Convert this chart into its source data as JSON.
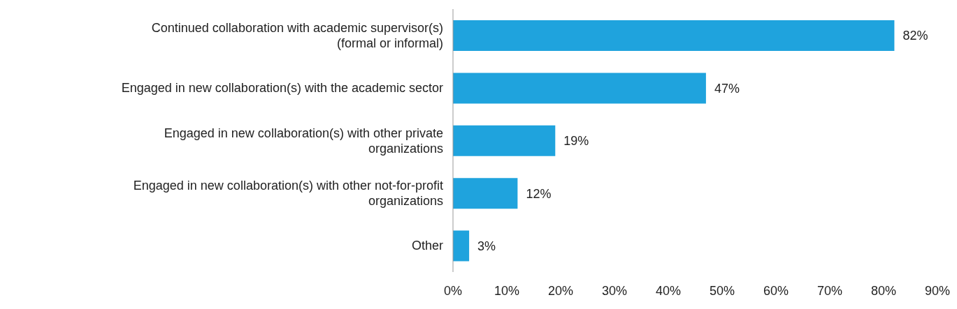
{
  "chart_data": {
    "type": "bar",
    "orientation": "horizontal",
    "categories": [
      "Continued collaboration with academic supervisor(s) (formal or informal)",
      "Engaged in new collaboration(s) with the academic sector",
      "Engaged in new collaboration(s) with other private organizations",
      "Engaged in new collaboration(s) with other not-for-profit organizations",
      "Other"
    ],
    "values": [
      82,
      47,
      19,
      12,
      3
    ],
    "value_labels": [
      "82%",
      "47%",
      "19%",
      "12%",
      "3%"
    ],
    "color": "#1fa3dd",
    "xlim": [
      0,
      90
    ],
    "xticks": [
      {
        "value": 0,
        "label": "0%"
      },
      {
        "value": 10,
        "label": "10%"
      },
      {
        "value": 20,
        "label": "20%"
      },
      {
        "value": 30,
        "label": "30%"
      },
      {
        "value": 40,
        "label": "40%"
      },
      {
        "value": 50,
        "label": "50%"
      },
      {
        "value": 60,
        "label": "60%"
      },
      {
        "value": 70,
        "label": "70%"
      },
      {
        "value": 80,
        "label": "80%"
      },
      {
        "value": 90,
        "label": "90%"
      }
    ],
    "grid": false,
    "legend": false
  }
}
